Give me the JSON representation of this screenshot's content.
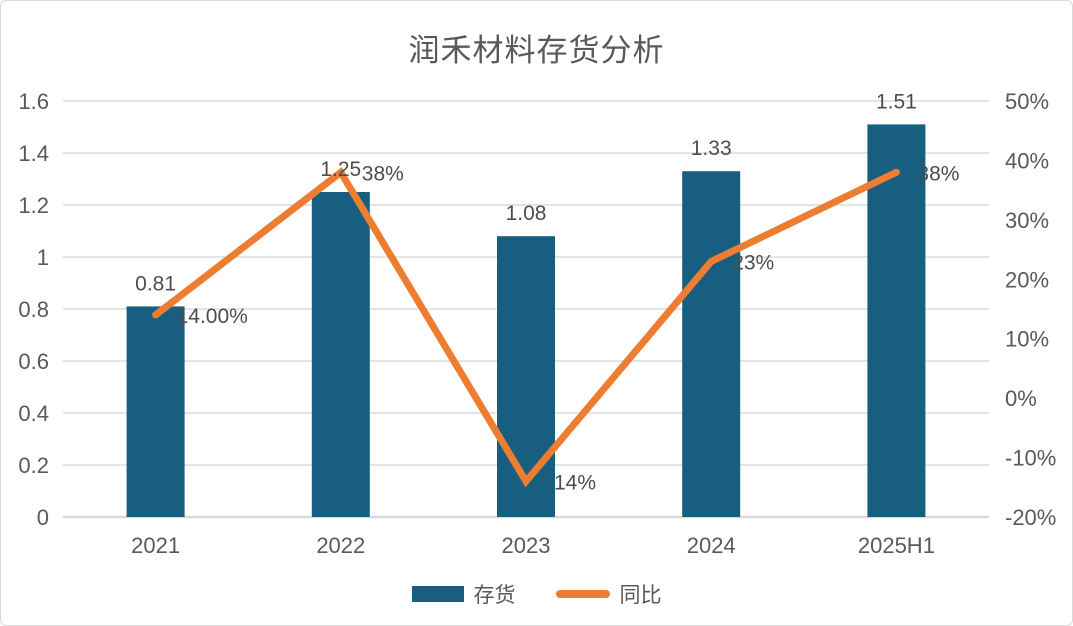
{
  "title": "润禾材料存货分析",
  "colors": {
    "bar": "#175E80",
    "line": "#ED7D31",
    "grid": "#DCDCDC",
    "baseline": "#D9D9D9",
    "axis_text": "#595959",
    "label_text": "#4D4D4D",
    "background": "#FFFFFF",
    "border": "#D9D9D9"
  },
  "legend": {
    "items": [
      {
        "label": "存货",
        "type": "bar"
      },
      {
        "label": "同比",
        "type": "line"
      }
    ]
  },
  "chart_data": {
    "type": "bar+line",
    "title": "润禾材料存货分析",
    "categories": [
      "2021",
      "2022",
      "2023",
      "2024",
      "2025H1"
    ],
    "series": [
      {
        "name": "存货",
        "type": "bar",
        "axis": "left",
        "values": [
          0.81,
          1.25,
          1.08,
          1.33,
          1.51
        ],
        "labels": [
          "0.81",
          "1.25",
          "1.08",
          "1.33",
          "1.51"
        ]
      },
      {
        "name": "同比",
        "type": "line",
        "axis": "right",
        "values": [
          14,
          38,
          -14,
          23,
          38
        ],
        "labels": [
          "14.00%",
          "38%",
          "-14%",
          "23%",
          "38%"
        ]
      }
    ],
    "left_axis": {
      "min": 0,
      "max": 1.6,
      "ticks": [
        "0",
        "0.2",
        "0.4",
        "0.6",
        "0.8",
        "1",
        "1.2",
        "1.4",
        "1.6"
      ]
    },
    "right_axis": {
      "min": -20,
      "max": 50,
      "ticks": [
        "-20%",
        "-10%",
        "0%",
        "10%",
        "20%",
        "30%",
        "40%",
        "50%"
      ]
    },
    "grid": true,
    "legend_position": "bottom"
  }
}
